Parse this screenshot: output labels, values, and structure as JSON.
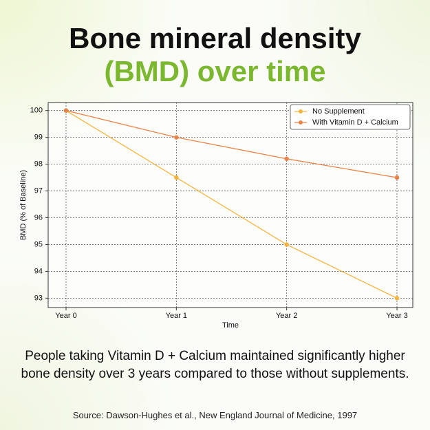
{
  "chart_data": {
    "type": "line",
    "title": "Bone mineral density",
    "subtitle": "(BMD) over time",
    "x_label": "Time",
    "y_label": "BMD (% of Baseline)",
    "categories": [
      "Year 0",
      "Year 1",
      "Year 2",
      "Year 3"
    ],
    "series": [
      {
        "name": "No Supplement",
        "color": "#f5b440",
        "values": [
          100,
          97.5,
          95,
          93
        ]
      },
      {
        "name": "With Vitamin D + Calcium",
        "color": "#e8844a",
        "values": [
          100,
          99,
          98.2,
          97.5
        ]
      }
    ],
    "ylim": [
      92.65,
      100.3
    ],
    "yticks": [
      93,
      94,
      95,
      96,
      97,
      98,
      99,
      100
    ],
    "grid": true,
    "legend": "upper right",
    "caption": "People taking Vitamin D + Calcium maintained significantly higher bone density over 3 years compared to those without supplements.",
    "source": "Source: Dawson-Hughes et al., New England Journal of Medicine, 1997"
  }
}
